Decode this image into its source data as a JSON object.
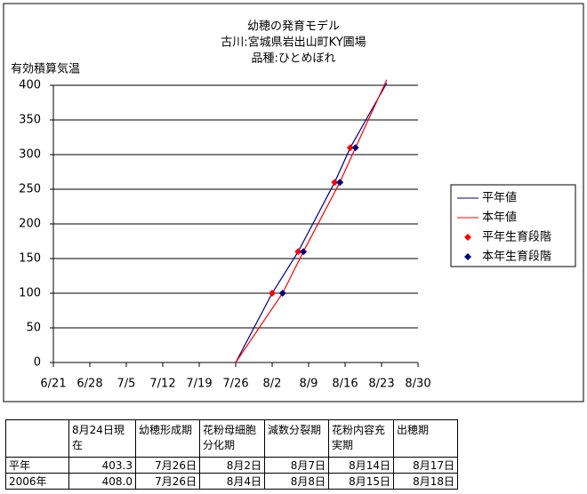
{
  "chart_data": {
    "type": "line",
    "title": [
      "幼穂の発育モデル",
      "古川:宮城県岩出山町KY圃場",
      "品種:ひとめぼれ"
    ],
    "y_label": "有効積算気温",
    "xlim": [
      172,
      242
    ],
    "xticks": [
      {
        "value": 172,
        "label": "6/21"
      },
      {
        "value": 179,
        "label": "6/28"
      },
      {
        "value": 186,
        "label": "7/5"
      },
      {
        "value": 193,
        "label": "7/12"
      },
      {
        "value": 200,
        "label": "7/19"
      },
      {
        "value": 207,
        "label": "7/26"
      },
      {
        "value": 214,
        "label": "8/2"
      },
      {
        "value": 221,
        "label": "8/9"
      },
      {
        "value": 228,
        "label": "8/16"
      },
      {
        "value": 235,
        "label": "8/23"
      },
      {
        "value": 242,
        "label": "8/30"
      }
    ],
    "ylim": [
      0,
      400
    ],
    "yticks": [
      0,
      50,
      100,
      150,
      200,
      250,
      300,
      350,
      400
    ],
    "grid": true,
    "series": [
      {
        "name": "平年値",
        "style": "line",
        "color": "#000080",
        "x": [
          207,
          214,
          219,
          226,
          229,
          236
        ],
        "values": [
          0,
          100,
          160,
          260,
          310,
          403.3
        ]
      },
      {
        "name": "本年値",
        "style": "line",
        "color": "#ff0000",
        "x": [
          207,
          216,
          220,
          227,
          230,
          236
        ],
        "values": [
          0,
          100,
          160,
          260,
          310,
          408
        ]
      },
      {
        "name": "平年生育段階",
        "style": "diamond",
        "color": "#ff0000",
        "x": [
          214,
          219,
          226,
          229
        ],
        "values": [
          100,
          160,
          260,
          310
        ]
      },
      {
        "name": "本年生育段階",
        "style": "diamond",
        "color": "#000080",
        "x": [
          216,
          220,
          227,
          230
        ],
        "values": [
          100,
          160,
          260,
          310
        ]
      }
    ]
  },
  "table": {
    "header": [
      "",
      "8月24日現在",
      "幼穂形成期",
      "花粉母細胞分化期",
      "減数分裂期",
      "花粉内容充実期",
      "出穂期"
    ],
    "rows": [
      [
        "平年",
        "403.3",
        "7月26日",
        "8月2日",
        "8月7日",
        "8月14日",
        "8月17日"
      ],
      [
        "2006年",
        "408.0",
        "7月26日",
        "8月4日",
        "8月8日",
        "8月15日",
        "8月18日"
      ]
    ]
  }
}
